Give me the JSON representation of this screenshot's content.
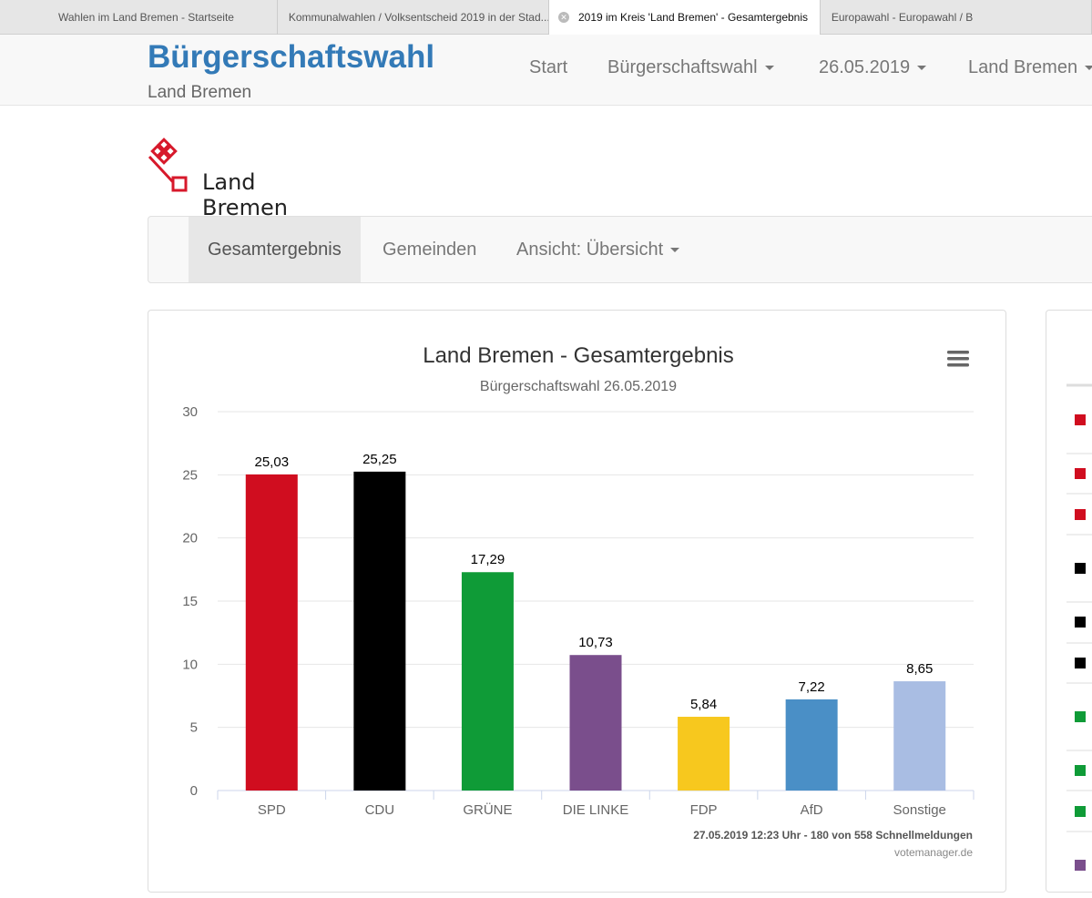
{
  "browser_tabs": [
    {
      "label": "Wahlen im Land Bremen - Startseite"
    },
    {
      "label": "Kommunalwahlen / Volksentscheid 2019 in der Stad..."
    },
    {
      "label": "2019 im Kreis 'Land Bremen' - Gesamtergebnis",
      "active": true
    },
    {
      "label": "Europawahl - Europawahl / B"
    }
  ],
  "header": {
    "title": "Bürgerschaftswahl",
    "subtitle": "Land Bremen",
    "nav": [
      {
        "label": "Start"
      },
      {
        "label": "Bürgerschaftswahl"
      },
      {
        "label": "26.05.2019"
      },
      {
        "label": "Land Bremen"
      }
    ]
  },
  "logo": {
    "text": "Land Bremen"
  },
  "subnav": [
    {
      "label": "Gesamtergebnis"
    },
    {
      "label": "Gemeinden"
    },
    {
      "label": "Ansicht: Übersicht"
    }
  ],
  "chart_data": {
    "type": "bar",
    "title": "Land Bremen - Gesamtergebnis",
    "subtitle": "Bürgerschaftswahl 26.05.2019",
    "categories": [
      "SPD",
      "CDU",
      "GRÜNE",
      "DIE LINKE",
      "FDP",
      "AfD",
      "Sonstige"
    ],
    "values": [
      25.03,
      25.25,
      17.29,
      10.73,
      5.84,
      7.22,
      8.65
    ],
    "value_labels": [
      "25,03",
      "25,25",
      "17,29",
      "10,73",
      "5,84",
      "7,22",
      "8,65"
    ],
    "colors": [
      "#d00d1f",
      "#000000",
      "#0f9b37",
      "#7a4e8c",
      "#f7c81e",
      "#4a8fc6",
      "#a9bde3"
    ],
    "yticks": [
      0,
      5,
      10,
      15,
      20,
      25,
      30
    ],
    "ylim": [
      0,
      30
    ],
    "grid": true,
    "footer": "27.05.2019 12:23 Uhr - 180 von 558 Schnellmeldungen",
    "credit": "votemanager.de"
  },
  "legend_side": {
    "colors": [
      "#d00d1f",
      "#d00d1f",
      "#d00d1f",
      "#000000",
      "#000000",
      "#000000",
      "#0f9b37",
      "#0f9b37",
      "#0f9b37",
      "#7a4e8c"
    ]
  }
}
